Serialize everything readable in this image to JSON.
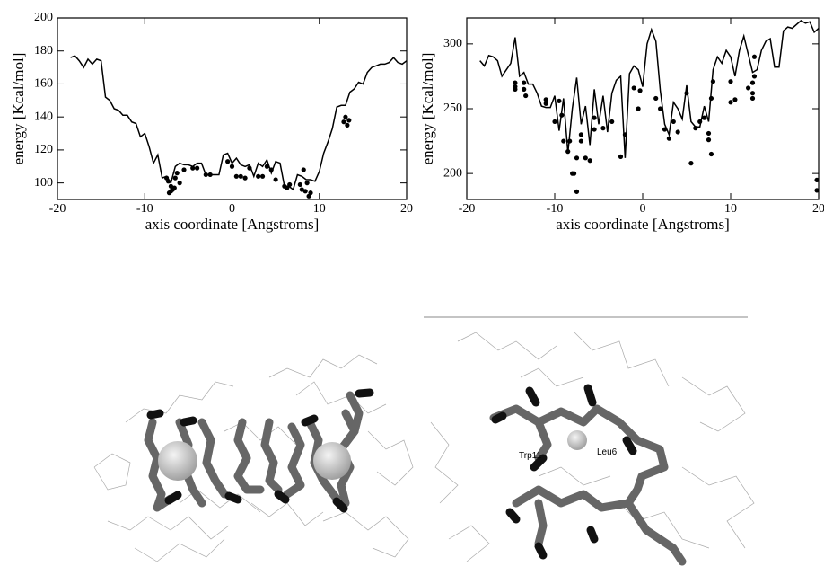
{
  "chart_data": [
    {
      "type": "line",
      "x_label": "axis coordinate [Angstroms]",
      "y_label": "energy [Kcal/mol]",
      "xlim": [
        -20,
        20
      ],
      "xticks": [
        -20,
        -10,
        0,
        10,
        20
      ],
      "ylim": [
        90,
        200
      ],
      "yticks": [
        100,
        120,
        140,
        160,
        180,
        200
      ],
      "series": [
        {
          "style": "line",
          "color": "#000000",
          "x": [
            -18.5,
            -18,
            -17.5,
            -17,
            -16.5,
            -16,
            -15.5,
            -15,
            -14.5,
            -14,
            -13.5,
            -13,
            -12.5,
            -12,
            -11.5,
            -11,
            -10.5,
            -10,
            -9.5,
            -9,
            -8.5,
            -8,
            -7.5,
            -7,
            -6.5,
            -6,
            -5.5,
            -5,
            -4.5,
            -4,
            -3.5,
            -3,
            -2.5,
            -2,
            -1.5,
            -1,
            -0.5,
            0,
            0.5,
            1,
            1.5,
            2,
            2.5,
            3,
            3.5,
            4,
            4.5,
            5,
            5.5,
            6,
            6.5,
            7,
            7.5,
            8,
            8.5,
            9,
            9.5,
            10,
            10.5,
            11,
            11.5,
            12,
            12.5,
            13,
            13.5,
            14,
            14.5,
            15,
            15.5,
            16,
            16.5,
            17,
            17.5,
            18,
            18.5,
            19,
            19.5,
            20
          ],
          "values": [
            176,
            177,
            174,
            170,
            175,
            172,
            175,
            174,
            152,
            150,
            145,
            144,
            141,
            141,
            137,
            136,
            128,
            130,
            122,
            112,
            117,
            103,
            104,
            100,
            110,
            112,
            111,
            111,
            110,
            112,
            112,
            105,
            105,
            105,
            105,
            117,
            118,
            112,
            115,
            111,
            110,
            111,
            104,
            112,
            110,
            114,
            106,
            113,
            112,
            98,
            98,
            96,
            105,
            104,
            102,
            102,
            101,
            107,
            118,
            125,
            133,
            146,
            147,
            147,
            155,
            157,
            161,
            160,
            167,
            170,
            171,
            172,
            172,
            173,
            176,
            173,
            172,
            174
          ]
        },
        {
          "style": "scatter",
          "color": "#000000",
          "x": [
            -7.5,
            -7.3,
            -7,
            -7,
            -6.8,
            -6.6,
            -6.5,
            -6.3,
            -7.2,
            -6,
            -5.5,
            -4.5,
            -4,
            -3,
            -2.5,
            -0.5,
            0,
            0.5,
            1,
            1.5,
            2,
            3,
            3.5,
            4,
            4.5,
            5,
            6,
            6.3,
            6.6,
            7.8,
            8,
            8.2,
            8.4,
            8.6,
            8.8,
            9,
            13,
            12.8,
            13.2,
            13.4
          ],
          "values": [
            103,
            101,
            98,
            95,
            96,
            97,
            103,
            106,
            94,
            100,
            108,
            109,
            109,
            105,
            105,
            113,
            110,
            104,
            104,
            103,
            109,
            104,
            104,
            110,
            108,
            102,
            98,
            97,
            99,
            99,
            96,
            108,
            95,
            100,
            92,
            94,
            140,
            137,
            135,
            138
          ]
        }
      ]
    },
    {
      "type": "line",
      "x_label": "axis coordinate [Angstroms]",
      "y_label": "energy [Kcal/mol]",
      "xlim": [
        -20,
        20
      ],
      "xticks": [
        -20,
        -10,
        0,
        10,
        20
      ],
      "ylim": [
        180,
        320
      ],
      "yticks": [
        200,
        250,
        300
      ],
      "series": [
        {
          "style": "line",
          "color": "#000000",
          "x": [
            -18.5,
            -18,
            -17.5,
            -17,
            -16.5,
            -16,
            -15.5,
            -15,
            -14.5,
            -14,
            -13.5,
            -13,
            -12.5,
            -12,
            -11.5,
            -11,
            -10.5,
            -10,
            -9.5,
            -9,
            -8.5,
            -8,
            -7.5,
            -7,
            -6.5,
            -6,
            -5.5,
            -5,
            -4.5,
            -4,
            -3.5,
            -3,
            -2.5,
            -2,
            -1.5,
            -1,
            -0.5,
            0,
            0.5,
            1,
            1.5,
            2,
            2.5,
            3,
            3.5,
            4,
            4.5,
            5,
            5.5,
            6,
            6.5,
            7,
            7.5,
            8,
            8.5,
            9,
            9.5,
            10,
            10.5,
            11,
            11.5,
            12,
            12.5,
            13,
            13.5,
            14,
            14.5,
            15,
            15.5,
            16,
            16.5,
            17,
            17.5,
            18,
            18.5,
            19,
            19.5,
            20
          ],
          "values": [
            287,
            283,
            291,
            290,
            287,
            275,
            280,
            285,
            305,
            275,
            278,
            269,
            269,
            262,
            252,
            251,
            251,
            260,
            233,
            258,
            216,
            250,
            274,
            238,
            252,
            222,
            265,
            238,
            260,
            232,
            262,
            272,
            275,
            212,
            277,
            283,
            280,
            267,
            300,
            311,
            302,
            264,
            238,
            230,
            255,
            250,
            242,
            268,
            240,
            236,
            236,
            252,
            240,
            280,
            290,
            285,
            295,
            290,
            275,
            295,
            306,
            292,
            278,
            280,
            295,
            302,
            304,
            282,
            282,
            310,
            313,
            312,
            315,
            318,
            316,
            317,
            309,
            312
          ]
        },
        {
          "style": "scatter",
          "color": "#000000",
          "x": [
            -14.5,
            -14.5,
            -14.5,
            -13.5,
            -13.5,
            -13.3,
            -11,
            -11,
            -10,
            -9.5,
            -9.2,
            -9,
            -8.5,
            -8.3,
            -8,
            -7.8,
            -7.5,
            -7.5,
            -7,
            -7,
            -6.5,
            -6,
            -5.5,
            -5.5,
            -4.5,
            -3.5,
            -2.5,
            -2,
            -1,
            -0.3,
            -0.5,
            1.5,
            2,
            2.5,
            3,
            3.5,
            4,
            5,
            5.5,
            6,
            6.5,
            7,
            7.5,
            7.5,
            7.8,
            8,
            7.8,
            10,
            10,
            10.5,
            12,
            12.5,
            12.5,
            12.5,
            12.7,
            12.7,
            19.8,
            19.8
          ],
          "values": [
            267,
            270,
            265,
            270,
            265,
            260,
            257,
            254,
            240,
            256,
            245,
            225,
            217,
            225,
            200,
            200,
            212,
            186,
            230,
            225,
            212,
            210,
            234,
            243,
            235,
            240,
            213,
            230,
            266,
            264,
            250,
            258,
            250,
            234,
            227,
            240,
            232,
            262,
            208,
            235,
            240,
            243,
            231,
            226,
            258,
            271,
            215,
            271,
            255,
            257,
            266,
            270,
            262,
            258,
            275,
            290,
            195,
            187
          ]
        }
      ]
    }
  ],
  "molecule_labels": [
    "Trp11",
    "Leu6"
  ]
}
